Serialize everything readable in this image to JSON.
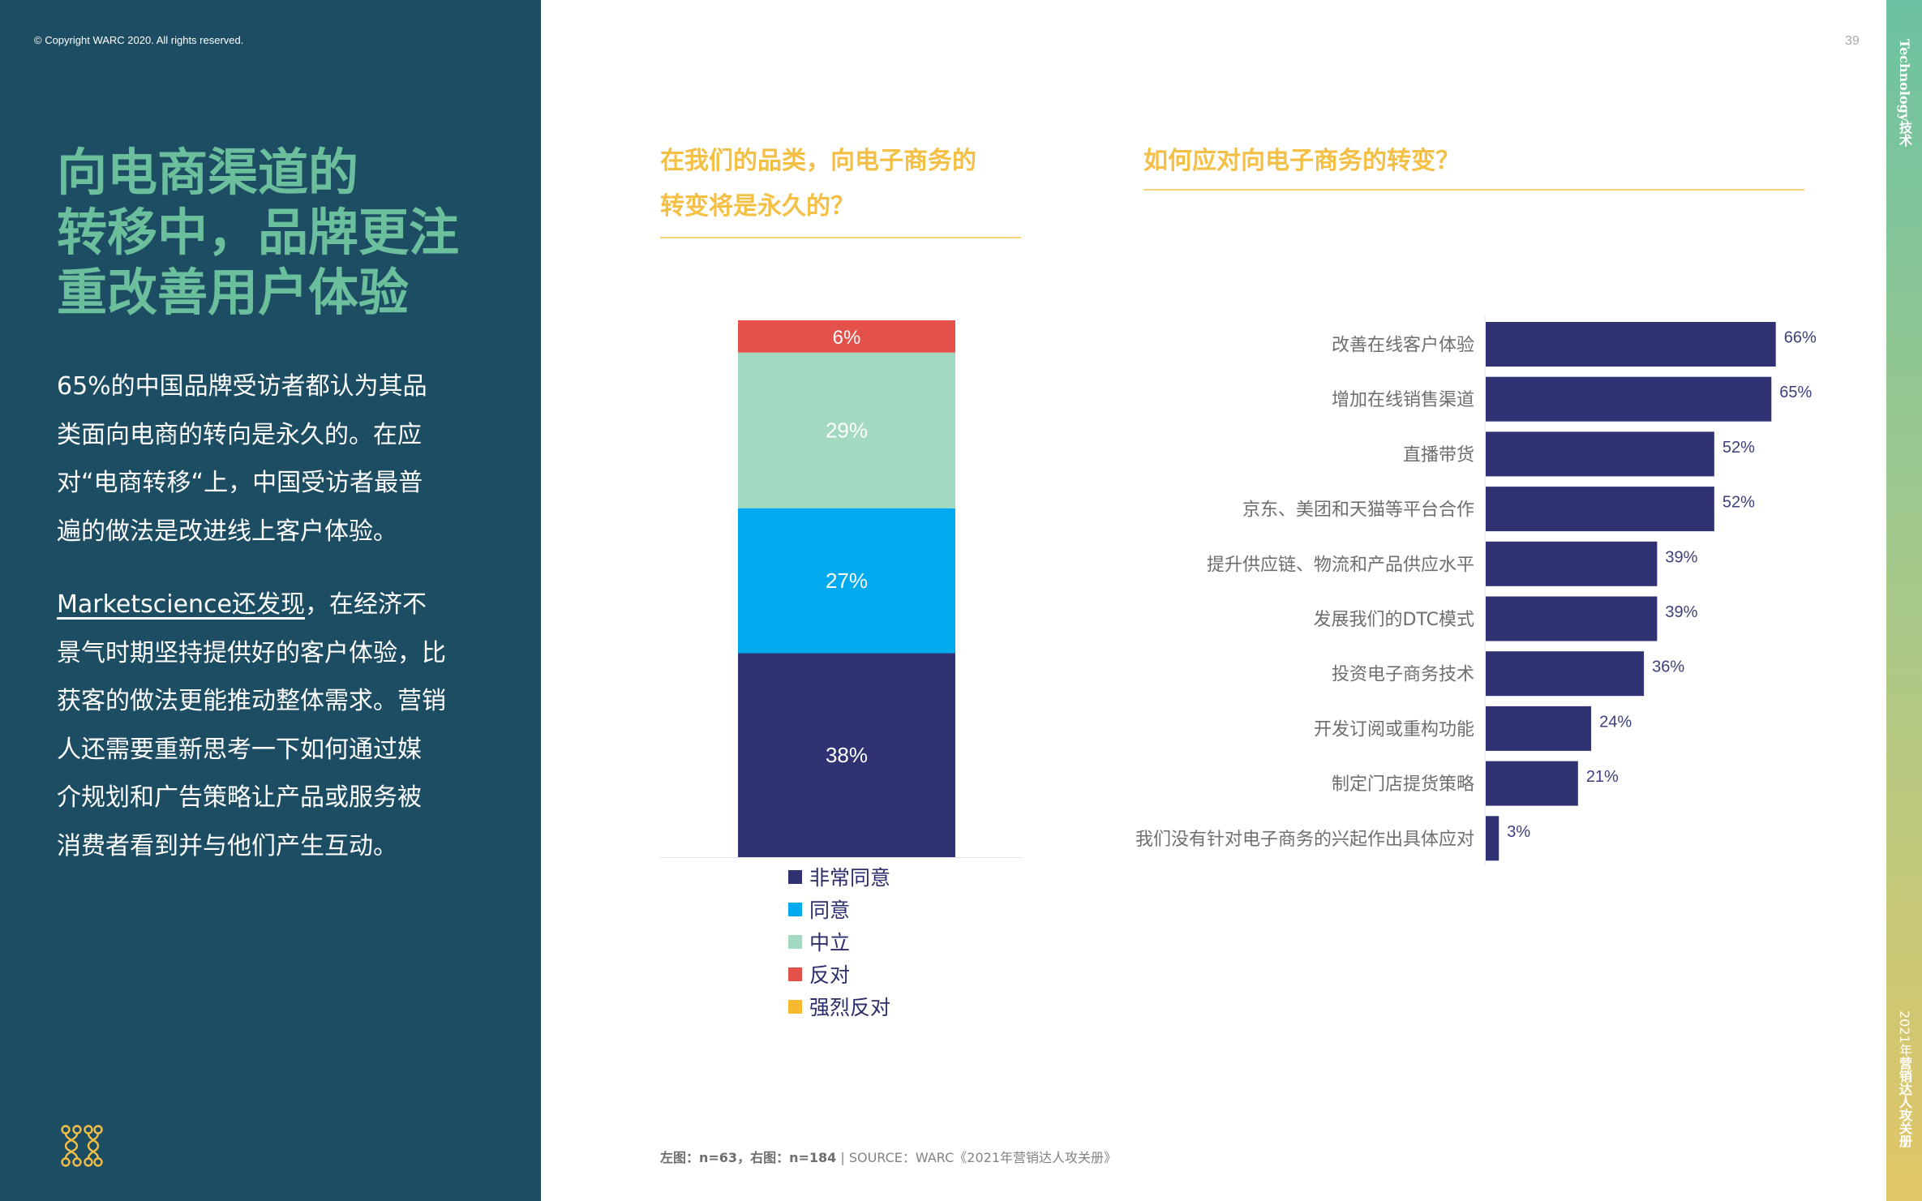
{
  "copyright": "© Copyright WARC 2020. All rights reserved.",
  "page_number": "39",
  "side_tab_top": "Technology技术",
  "side_tab_bottom": {
    "year": "2021年",
    "title": "营销达人攻关册"
  },
  "headline": [
    "向电商渠道的",
    "转移中，品牌更注",
    "重改善用户体验"
  ],
  "paragraph1": [
    "65%的中国品牌受访者都认为其品",
    "类面向电商的转向是永久的。在应",
    "对“电商转移“上，中国受访者最普",
    "遍的做法是改进线上客户体验。"
  ],
  "paragraph2": {
    "link": "Marketscience还发现",
    "first_rest": "，在经济不",
    "lines": [
      "景气时期坚持提供好的客户体验，比",
      "获客的做法更能推动整体需求。营销",
      "人还需要重新思考一下如何通过媒",
      "介规划和广告策略让产品或服务被",
      "消费者看到并与他们产生互动。"
    ]
  },
  "left_chart_title": [
    "在我们的品类，向电子商务的",
    "转变将是永久的？"
  ],
  "right_chart_title": "如何应对向电子商务的转变？",
  "chart_data": [
    {
      "type": "bar",
      "stacked": true,
      "title": "在我们的品类，向电子商务的转变将是永久的？",
      "categories": [
        "非常同意",
        "同意",
        "中立",
        "反对",
        "强烈反对"
      ],
      "values": [
        38,
        27,
        29,
        6,
        0
      ],
      "value_labels": [
        "38%",
        "27%",
        "29%",
        "6%",
        ""
      ],
      "colors": [
        "#303274",
        "#00aaef",
        "#a3d9c1",
        "#e4514a",
        "#f5b82e"
      ],
      "legend_position": "bottom"
    },
    {
      "type": "bar",
      "orientation": "horizontal",
      "title": "如何应对向电子商务的转变？",
      "categories": [
        "改善在线客户体验",
        "增加在线销售渠道",
        "直播带货",
        "京东、美团和天猫等平台合作",
        "提升供应链、物流和产品供应水平",
        "发展我们的DTC模式",
        "投资电子商务技术",
        "开发订阅或重构功能",
        "制定门店提货策略",
        "我们没有针对电子商务的兴起作出具体应对"
      ],
      "values": [
        66,
        65,
        52,
        52,
        39,
        39,
        36,
        24,
        21,
        3
      ],
      "value_labels": [
        "66%",
        "65%",
        "52%",
        "52%",
        "39%",
        "39%",
        "36%",
        "24%",
        "21%",
        "3%"
      ],
      "color": "#303274"
    }
  ],
  "footer": {
    "sample": "左图：n=63，右图：n=184",
    "source": " | SOURCE：WARC《2021年营销达人攻关册》"
  }
}
